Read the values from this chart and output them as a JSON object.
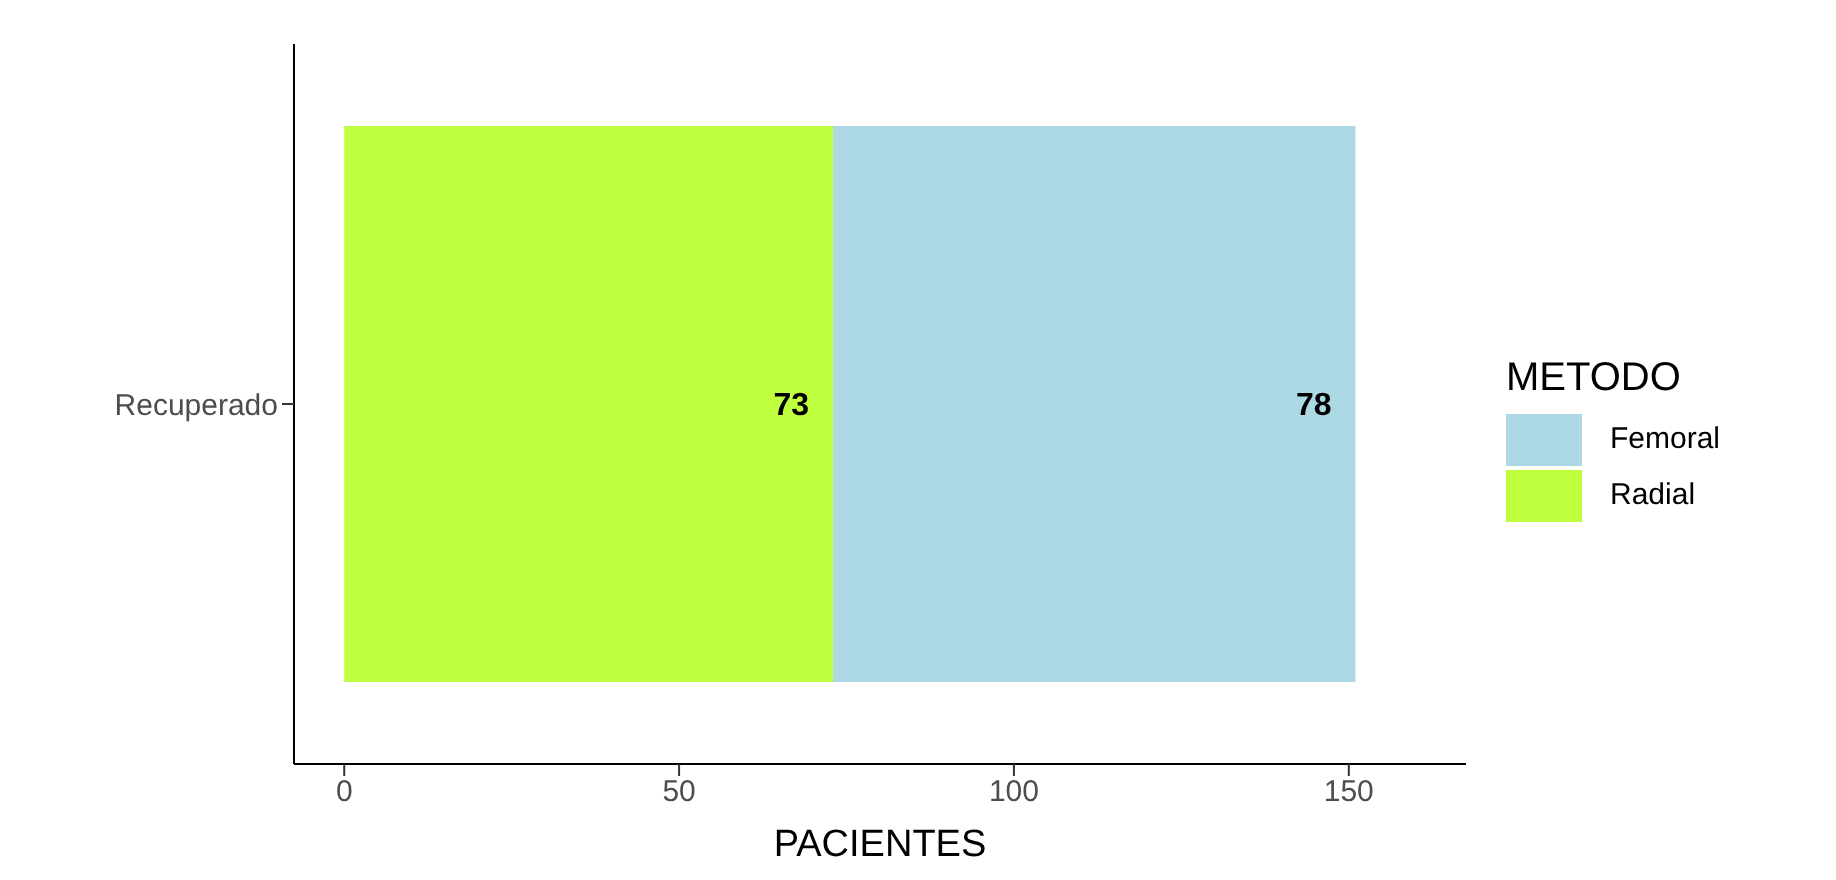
{
  "chart_data": {
    "type": "bar",
    "orientation": "horizontal",
    "stacked": true,
    "categories": [
      "Recuperado"
    ],
    "series": [
      {
        "name": "Radial",
        "color": "#c0ff3e",
        "values": [
          73
        ]
      },
      {
        "name": "Femoral",
        "color": "#add8e6",
        "values": [
          78
        ]
      }
    ],
    "xlabel": "PACIENTES",
    "legend_title": "METODO",
    "xlim": [
      -7.5,
      167.5
    ],
    "xticks": [
      0,
      50,
      100,
      150
    ],
    "data_labels": true,
    "legend": "right",
    "grid": false
  }
}
